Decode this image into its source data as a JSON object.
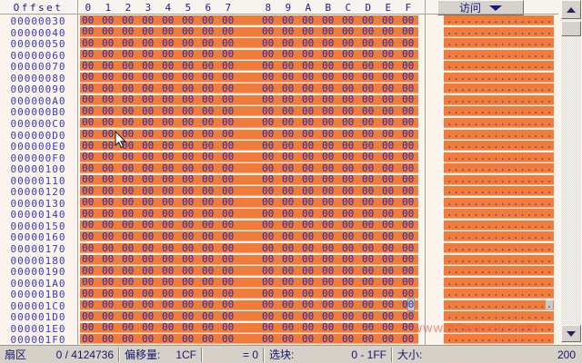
{
  "header": {
    "offset_label": "Offset",
    "columns": [
      "0",
      "1",
      "2",
      "3",
      "4",
      "5",
      "6",
      "7",
      "8",
      "9",
      "A",
      "B",
      "C",
      "D",
      "E",
      "F"
    ],
    "access_button_label": "访问"
  },
  "grid": {
    "row_offsets": [
      "00000030",
      "00000040",
      "00000050",
      "00000060",
      "00000070",
      "00000080",
      "00000090",
      "000000A0",
      "000000B0",
      "000000C0",
      "000000D0",
      "000000E0",
      "000000F0",
      "00000100",
      "00000110",
      "00000120",
      "00000130",
      "00000140",
      "00000150",
      "00000160",
      "00000170",
      "00000180",
      "00000190",
      "000001A0",
      "000001B0",
      "000001C0",
      "000001D0",
      "000001E0",
      "000001F0"
    ],
    "byte_value": "00",
    "bytes_per_row": 16,
    "ascii_char": ".",
    "cursor": {
      "row_offset": "000001C0",
      "byte_index": 15,
      "nibble_index": 1
    }
  },
  "status_bar": {
    "sector_label": "扇区",
    "sector_value": "0 / 4124736",
    "offset_label": "偏移量:",
    "offset_value": "1CF",
    "equals_value": "= 0",
    "block_label": "选块:",
    "block_value": "0 - 1FF",
    "size_label": "大小:",
    "size_value": "200"
  },
  "watermark": "www.52weixiu.com",
  "colors": {
    "highlight_orange": "#F07B3A",
    "digit_navy": "#2A2AB0",
    "chrome_gray": "#D5D1C9",
    "status_text_navy": "#16166B"
  }
}
